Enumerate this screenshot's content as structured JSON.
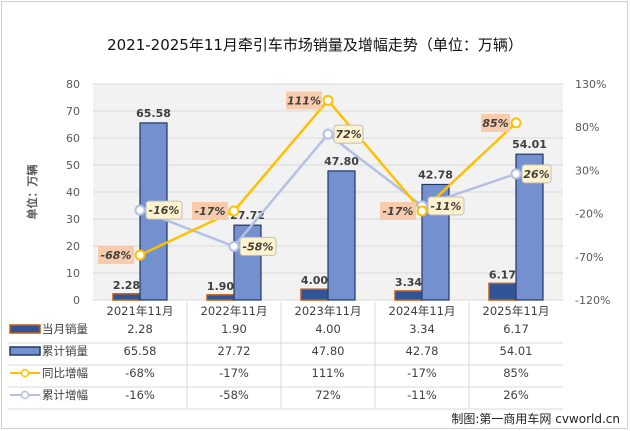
{
  "chart_data": {
    "type": "bar+line",
    "title": "2021-2025年11月牵引车市场销量及增幅走势（单位：万辆）",
    "ylabel": "单位：万辆",
    "categories": [
      "2021年11月",
      "2022年11月",
      "2023年11月",
      "2024年11月",
      "2025年11月"
    ],
    "ylim": [
      0,
      80
    ],
    "yticks": [
      "0",
      "10",
      "20",
      "30",
      "40",
      "50",
      "60",
      "70",
      "80"
    ],
    "y2lim": [
      -120,
      130
    ],
    "y2ticks": [
      "-120%",
      "-70%",
      "-20%",
      "30%",
      "80%",
      "130%"
    ],
    "grid": true,
    "series": [
      {
        "name": "当月销量",
        "type": "bar",
        "axis": "left",
        "values": [
          2.28,
          1.9,
          4.0,
          3.34,
          6.17
        ],
        "labels": [
          "2.28",
          "1.90",
          "4.00",
          "3.34",
          "6.17"
        ],
        "color": "#2f5597",
        "border": "#c55a11"
      },
      {
        "name": "累计销量",
        "type": "bar",
        "axis": "right-unit-left",
        "values": [
          65.58,
          27.72,
          47.8,
          42.78,
          54.01
        ],
        "labels": [
          "65.58",
          "27.72",
          "47.80",
          "42.78",
          "54.01"
        ],
        "color": "#7590cf",
        "border": "#1f3864"
      },
      {
        "name": "同比增幅",
        "type": "line",
        "axis": "right",
        "values": [
          -68,
          -17,
          111,
          -17,
          85
        ],
        "labels": [
          "-68%",
          "-17%",
          "111%",
          "-17%",
          "85%"
        ],
        "color": "#ffc000",
        "label_bg": "#f8cbad"
      },
      {
        "name": "累计增幅",
        "type": "line",
        "axis": "right",
        "values": [
          -16,
          -58,
          72,
          -11,
          26
        ],
        "labels": [
          "-16%",
          "-58%",
          "72%",
          "-11%",
          "26%"
        ],
        "color": "#b4c0e4",
        "label_bg": "#fff2cc"
      }
    ],
    "legend": "bottom-table"
  },
  "credit": "制图:第一商用车网 cvworld.cn"
}
